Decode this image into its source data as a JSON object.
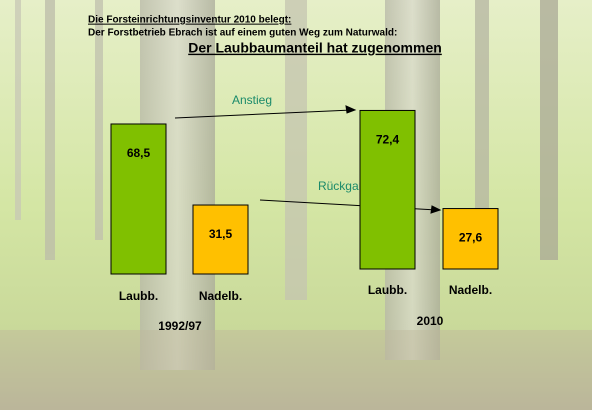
{
  "chart_data": {
    "type": "bar",
    "heading": "Die Forsteinrichtungsinventur 2010 belegt:",
    "subheading": "Der Forstbetrieb Ebrach ist auf einem guten Weg zum Naturwald:",
    "title": "Der Laubbaumanteil hat zugenommen",
    "colors": [
      "#80c000",
      "#ffc000"
    ],
    "groups": [
      {
        "label": "1992/97",
        "categories": [
          "Laubb.",
          "Nadelb."
        ],
        "values": [
          68.5,
          31.5
        ],
        "value_labels": [
          "68,5",
          "31,5"
        ]
      },
      {
        "label": "2010",
        "categories": [
          "Laubb.",
          "Nadelb."
        ],
        "values": [
          72.4,
          27.6
        ],
        "value_labels": [
          "72,4",
          "27,6"
        ]
      }
    ],
    "annotations": [
      "Anstieg",
      "Rückgang"
    ]
  }
}
